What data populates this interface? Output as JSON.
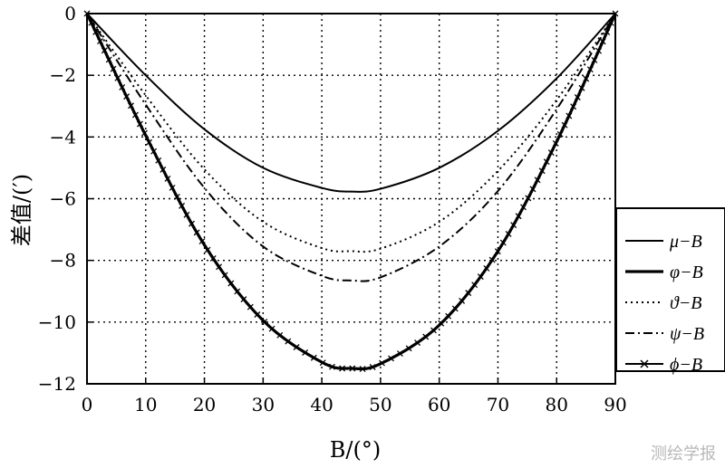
{
  "watermark": "测绘学报",
  "chart_data": {
    "type": "line",
    "xlabel": "B/(°)",
    "ylabel": "差值/(′)",
    "xlim": [
      0,
      90
    ],
    "ylim": [
      -12,
      0
    ],
    "xticks": [
      0,
      10,
      20,
      30,
      40,
      50,
      60,
      70,
      80,
      90
    ],
    "yticks": [
      0,
      -2,
      -4,
      -6,
      -8,
      -10,
      -12
    ],
    "ytick_labels": [
      "0",
      "−2",
      "−4",
      "−6",
      "−8",
      "−10",
      "−12"
    ],
    "grid": true,
    "legend_position": "right",
    "x": [
      0,
      10,
      20,
      30,
      40,
      45,
      50,
      60,
      70,
      80,
      90
    ],
    "series": [
      {
        "name": "μ−B",
        "style": "solid",
        "values": [
          0,
          -2.0,
          -3.75,
          -5.0,
          -5.65,
          -5.77,
          -5.68,
          -5.0,
          -3.8,
          -2.1,
          0
        ]
      },
      {
        "name": "φ−B",
        "style": "thick",
        "values": [
          0,
          -3.95,
          -7.5,
          -9.95,
          -11.3,
          -11.5,
          -11.35,
          -10.1,
          -7.7,
          -4.15,
          0
        ]
      },
      {
        "name": "ϑ−B",
        "style": "dotted",
        "values": [
          0,
          -2.65,
          -5.05,
          -6.75,
          -7.6,
          -7.7,
          -7.62,
          -6.75,
          -5.1,
          -2.8,
          0
        ]
      },
      {
        "name": "ψ−B",
        "style": "dashdot",
        "values": [
          0,
          -2.95,
          -5.65,
          -7.55,
          -8.5,
          -8.65,
          -8.55,
          -7.55,
          -5.75,
          -3.1,
          0
        ]
      },
      {
        "name": "ϕ−B",
        "style": "cross",
        "values": [
          0,
          -3.95,
          -7.5,
          -9.95,
          -11.3,
          -11.5,
          -11.35,
          -10.1,
          -7.7,
          -4.15,
          0
        ]
      }
    ]
  }
}
